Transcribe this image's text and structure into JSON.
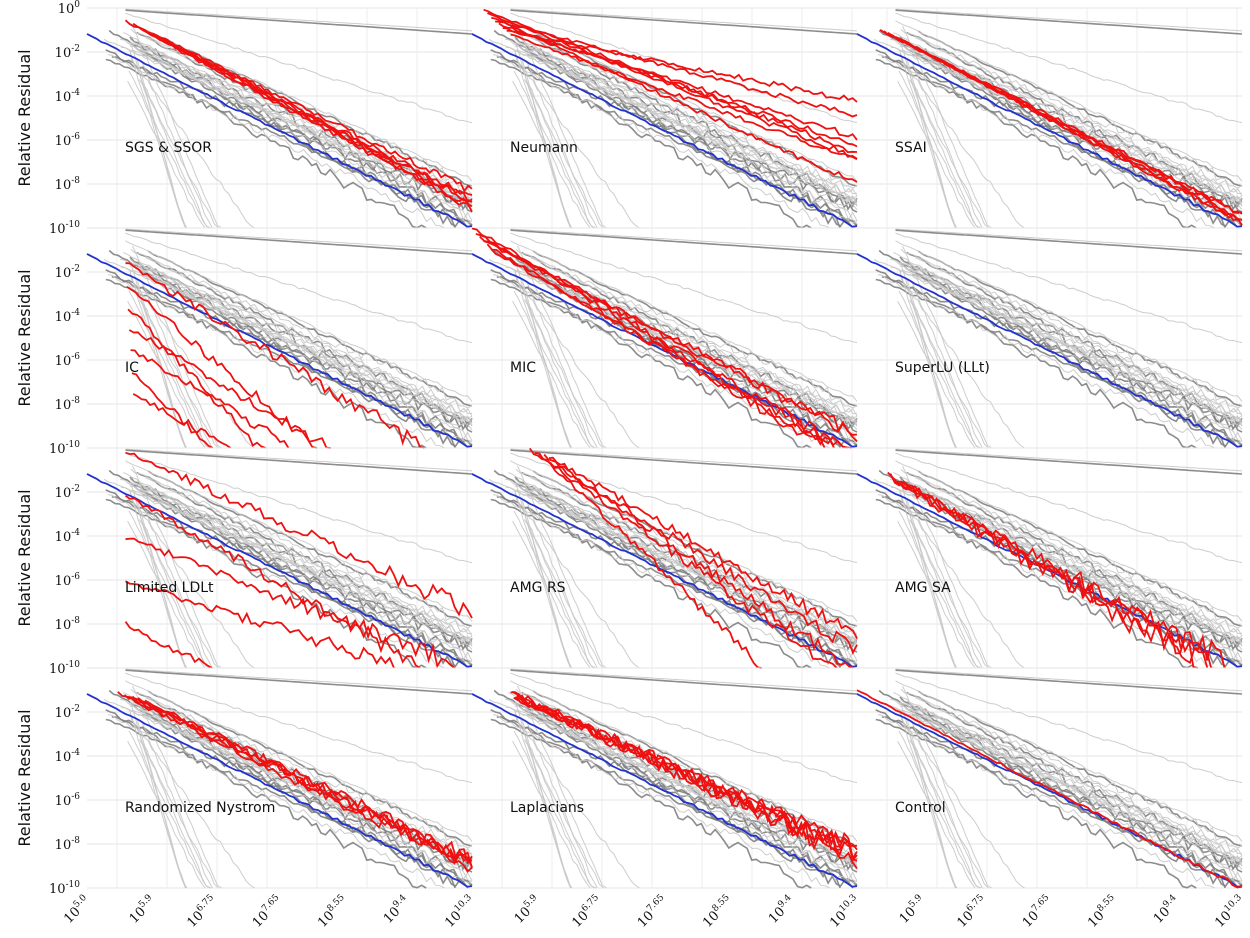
{
  "chart_data": {
    "type": "line",
    "layout": "4x3 grid of small multiples",
    "ylabel": "Relative Residual",
    "yscale": "log",
    "xscale": "log",
    "ylim_exp": [
      -10,
      0
    ],
    "xlim_exp": [
      5.0,
      10.3
    ],
    "ytick_exps": [
      0,
      -2,
      -4,
      -6,
      -8,
      -10
    ],
    "xtick_exps": [
      "5.0",
      "5.9",
      "6.75",
      "7.65",
      "8.55",
      "9.4",
      "10.3"
    ],
    "grid": true,
    "legend": "none",
    "colors": {
      "highlight": "#ee1111",
      "reference": "#2233cc",
      "background_dark": "#808080",
      "background_light": "#c8c8c8"
    },
    "panels": [
      {
        "label": "SGS & SSOR"
      },
      {
        "label": "Neumann"
      },
      {
        "label": "SSAI"
      },
      {
        "label": "IC"
      },
      {
        "label": "MIC"
      },
      {
        "label": "SuperLU (LLt)"
      },
      {
        "label": "Limited LDLt"
      },
      {
        "label": "AMG RS"
      },
      {
        "label": "AMG SA"
      },
      {
        "label": "Randomized Nystrom"
      },
      {
        "label": "Laplacians"
      },
      {
        "label": "Control"
      }
    ]
  }
}
